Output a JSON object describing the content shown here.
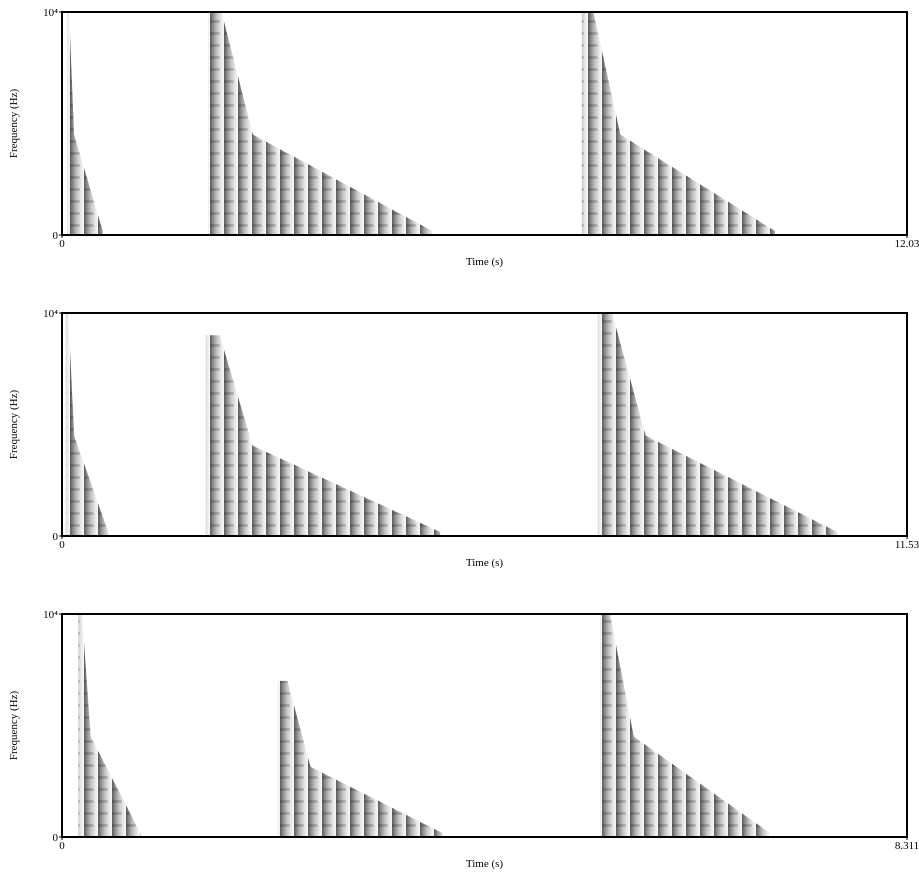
{
  "chart_data": [
    {
      "type": "spectrogram",
      "x_label": "Time (s)",
      "y_label": "Frequency (Hz)",
      "xlim": [
        0,
        12.03
      ],
      "xticks": [
        0,
        12.03
      ],
      "ylim": [
        0,
        10000
      ],
      "yticks": [
        0,
        {
          "value": 10000,
          "label": "10⁴"
        }
      ],
      "color": "#333333",
      "events": [
        {
          "start": 0.07,
          "end": 0.58,
          "fmax": 10000
        },
        {
          "start": 2.08,
          "end": 5.27,
          "fmax": 10000
        },
        {
          "start": 7.4,
          "end": 10.15,
          "fmax": 10000
        }
      ]
    },
    {
      "type": "spectrogram",
      "x_label": "Time (s)",
      "y_label": "Frequency (Hz)",
      "xlim": [
        0,
        11.53
      ],
      "xticks": [
        0,
        11.53
      ],
      "ylim": [
        0,
        10000
      ],
      "yticks": [
        0,
        {
          "value": 10000,
          "label": "10⁴"
        }
      ],
      "color": "#333333",
      "events": [
        {
          "start": 0.05,
          "end": 0.63,
          "fmax": 10000
        },
        {
          "start": 1.96,
          "end": 5.16,
          "fmax": 9000
        },
        {
          "start": 7.31,
          "end": 10.58,
          "fmax": 10000
        }
      ]
    },
    {
      "type": "spectrogram",
      "x_label": "Time (s)",
      "y_label": "Frequency (Hz)",
      "xlim": [
        0,
        8.311
      ],
      "xticks": [
        0,
        8.311
      ],
      "ylim": [
        0,
        10000
      ],
      "yticks": [
        0,
        {
          "value": 10000,
          "label": "10⁴"
        }
      ],
      "color": "#333333",
      "events": [
        {
          "start": 0.16,
          "end": 0.77,
          "fmax": 10000
        },
        {
          "start": 2.12,
          "end": 3.74,
          "fmax": 7000
        },
        {
          "start": 5.29,
          "end": 6.96,
          "fmax": 10000
        }
      ]
    }
  ]
}
